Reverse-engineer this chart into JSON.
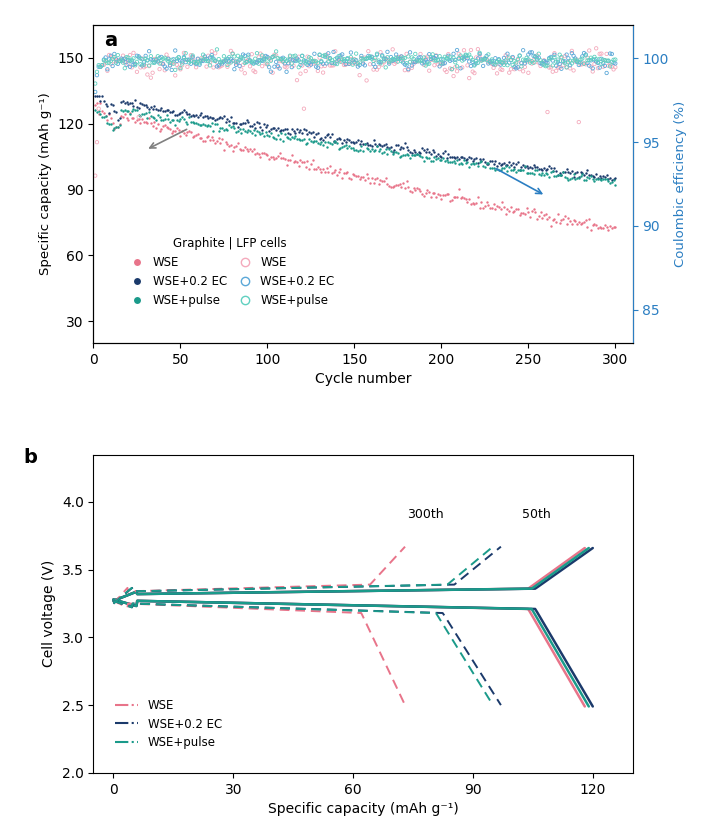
{
  "colors": {
    "wse_pink": "#E8748A",
    "wse_ec_dark": "#1B3A6B",
    "wse_pulse_teal": "#1A9A8A",
    "wse_ce_pink": "#F0A0B0",
    "wse_ec_ce": "#4A90C4",
    "wse_pulse_ce": "#40C0B0"
  },
  "panel_a": {
    "xlabel": "Cycle number",
    "ylabel_left": "Specific capacity (mAh g⁻¹)",
    "ylabel_right": "Coulombic efficiency (%)",
    "xlim": [
      0,
      310
    ],
    "ylim_left": [
      20,
      165
    ],
    "ylim_right": [
      83,
      102
    ],
    "yticks_left": [
      30,
      60,
      90,
      120,
      150
    ],
    "yticks_right": [
      85,
      90,
      95,
      100
    ],
    "legend_title": "Graphite | LFP cells",
    "legend_items": [
      "WSE",
      "WSE+0.2 EC",
      "WSE+pulse"
    ]
  },
  "panel_b": {
    "xlabel": "Specific capacity (mAh g⁻¹)",
    "ylabel": "Cell voltage (V)",
    "xlim": [
      -5,
      130
    ],
    "ylim": [
      2.0,
      4.35
    ],
    "xticks": [
      0,
      30,
      60,
      90,
      120
    ],
    "yticks": [
      2.0,
      2.5,
      3.0,
      3.5,
      4.0
    ],
    "legend_items": [
      "WSE",
      "WSE+0.2 EC",
      "WSE+pulse"
    ],
    "annotation_300": "300th",
    "annotation_50": "50th",
    "ann_300_x": 78,
    "ann_300_y": 3.88,
    "ann_50_x": 106,
    "ann_50_y": 3.88
  }
}
